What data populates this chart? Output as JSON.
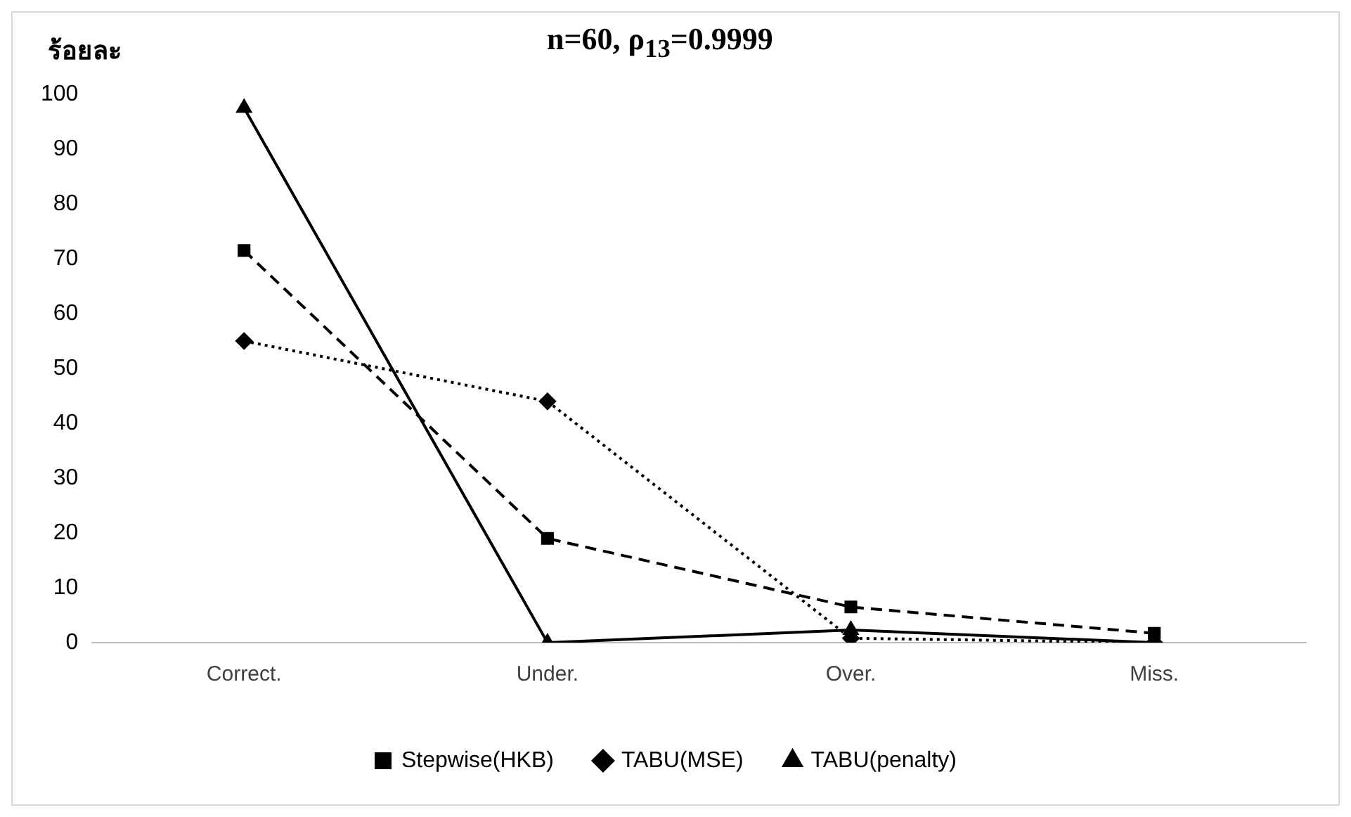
{
  "chart_data": {
    "type": "line",
    "title": "n=60, ρ$_{13}$=0.9999",
    "ylabel": "ร้อยละ",
    "categories": [
      "Correct.",
      "Under.",
      "Over.",
      "Miss."
    ],
    "ylim": [
      0,
      100
    ],
    "yticks": [
      0,
      10,
      20,
      30,
      40,
      50,
      60,
      70,
      80,
      90,
      100
    ],
    "grid": false,
    "legend": "bottom",
    "series": [
      {
        "name": "Stepwise(HKB)",
        "color": "#000000",
        "marker": "square",
        "line_style": "dashed",
        "values": [
          71.5,
          19,
          6.5,
          1.7
        ]
      },
      {
        "name": "TABU(MSE)",
        "color": "#000000",
        "marker": "diamond",
        "line_style": "dotted",
        "values": [
          55,
          44,
          0.8,
          0
        ]
      },
      {
        "name": "TABU(penalty)",
        "color": "#000000",
        "marker": "triangle",
        "line_style": "solid",
        "values": [
          97.5,
          0,
          2.3,
          0
        ]
      }
    ]
  }
}
